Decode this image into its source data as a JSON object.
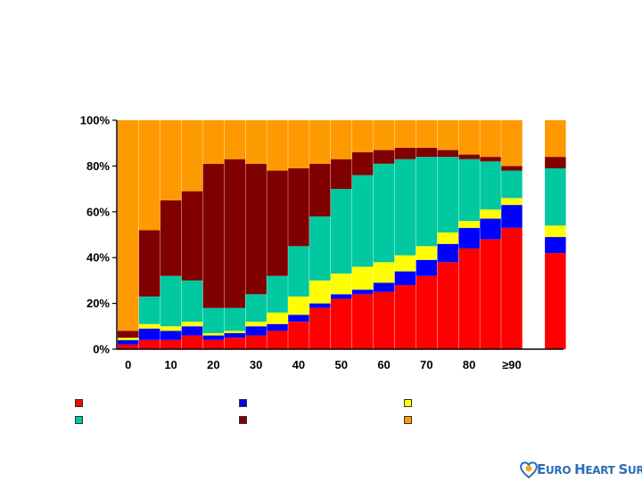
{
  "chart_data": {
    "type": "bar",
    "stacked": true,
    "normalized": true,
    "y_ticks": [
      "0%",
      "20%",
      "40%",
      "60%",
      "80%",
      "100%"
    ],
    "ylim": [
      0,
      100
    ],
    "x_tick_labels": [
      "0",
      "10",
      "20",
      "30",
      "40",
      "50",
      "60",
      "70",
      "80",
      "≥90"
    ],
    "groups": [
      {
        "label": "0",
        "segments": [
          2,
          2,
          1,
          0,
          3,
          92
        ]
      },
      {
        "label": "",
        "segments": [
          4,
          5,
          2,
          12,
          29,
          48
        ]
      },
      {
        "label": "10",
        "segments": [
          4,
          4,
          2,
          22,
          33,
          35
        ]
      },
      {
        "label": "",
        "segments": [
          6,
          4,
          2,
          18,
          39,
          31
        ]
      },
      {
        "label": "20",
        "segments": [
          4,
          2,
          1,
          11,
          63,
          19
        ]
      },
      {
        "label": "",
        "segments": [
          5,
          2,
          1,
          10,
          65,
          17
        ]
      },
      {
        "label": "30",
        "segments": [
          6,
          4,
          2,
          12,
          57,
          19
        ]
      },
      {
        "label": "",
        "segments": [
          8,
          3,
          5,
          16,
          46,
          22
        ]
      },
      {
        "label": "40",
        "segments": [
          12,
          3,
          8,
          22,
          34,
          21
        ]
      },
      {
        "label": "",
        "segments": [
          18,
          2,
          10,
          28,
          23,
          19
        ]
      },
      {
        "label": "50",
        "segments": [
          22,
          2,
          9,
          37,
          13,
          17
        ]
      },
      {
        "label": "",
        "segments": [
          24,
          2,
          10,
          40,
          10,
          14
        ]
      },
      {
        "label": "60",
        "segments": [
          25,
          4,
          9,
          43,
          6,
          13
        ]
      },
      {
        "label": "",
        "segments": [
          28,
          6,
          7,
          42,
          5,
          12
        ]
      },
      {
        "label": "70",
        "segments": [
          32,
          7,
          6,
          39,
          4,
          12
        ]
      },
      {
        "label": "",
        "segments": [
          38,
          8,
          5,
          33,
          3,
          13
        ]
      },
      {
        "label": "80",
        "segments": [
          44,
          9,
          3,
          27,
          2,
          15
        ]
      },
      {
        "label": "",
        "segments": [
          48,
          9,
          4,
          21,
          2,
          16
        ]
      },
      {
        "label": "≥90",
        "segments": [
          53,
          10,
          3,
          12,
          2,
          20
        ]
      },
      {
        "label": "",
        "segments": [
          42,
          7,
          5,
          25,
          5,
          16
        ],
        "separated": true
      }
    ],
    "series_colors": [
      "#ff0000",
      "#0000ff",
      "#ffff00",
      "#00c8a0",
      "#800000",
      "#ff9900"
    ],
    "legend": [
      {
        "color": "#ff0000",
        "label": ""
      },
      {
        "color": "#0000ff",
        "label": ""
      },
      {
        "color": "#ffff00",
        "label": ""
      },
      {
        "color": "#00c8a0",
        "label": ""
      },
      {
        "color": "#800000",
        "label": ""
      },
      {
        "color": "#ff9900",
        "label": ""
      }
    ]
  },
  "logo": {
    "text_big_1": "E",
    "text_small_1": "URO ",
    "text_big_2": "H",
    "text_small_2": "EART ",
    "text_big_3": "S",
    "text_small_3": "URVEY"
  }
}
